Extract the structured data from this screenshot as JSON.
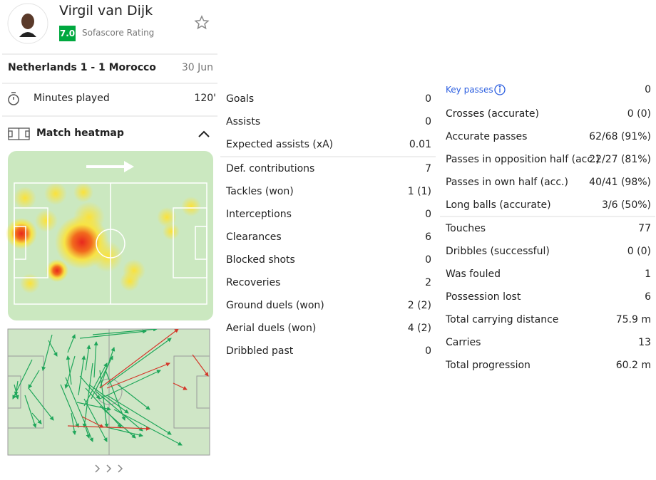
{
  "player": {
    "name": "Virgil van Dijk",
    "rating": "7.0",
    "rating_label": "Sofascore Rating"
  },
  "match": {
    "teams": "Netherlands 1 - 1 Morocco",
    "date": "30 Jun"
  },
  "minutes": {
    "label": "Minutes played",
    "value": "120'"
  },
  "heatmap": {
    "title": "Match heatmap"
  },
  "stats": [
    [
      [
        [
          "Goals",
          0
        ],
        [
          "Assists",
          0
        ],
        [
          "Expected assists (xA)",
          0.01
        ]
      ],
      [
        [
          "Def. contributions",
          7
        ],
        [
          "Tackles (won)",
          "1 (1)"
        ],
        [
          "Interceptions",
          0
        ],
        [
          "Clearances",
          6
        ],
        [
          "Blocked shots",
          0
        ],
        [
          "Recoveries",
          2
        ],
        [
          "Ground duels (won)",
          "2 (2)"
        ],
        [
          "Aerial duels (won)",
          "4 (2)"
        ],
        [
          "Dribbled past",
          0
        ]
      ]
    ],
    [
      [
        [
          "Key passes",
          0
        ],
        [
          "Crosses (accurate)",
          "0 (0)"
        ],
        [
          "Accurate passes",
          "62/68 (91%)"
        ],
        [
          "Passes in opposition half (acc.)",
          "22/27 (81%)"
        ],
        [
          "Passes in own half (acc.)",
          "40/41 (98%)"
        ],
        [
          "Long balls (accurate)",
          "3/6 (50%)"
        ]
      ],
      [
        [
          "Touches",
          77
        ],
        [
          "Dribbles (successful)",
          "0 (0)"
        ],
        [
          "Was fouled",
          1
        ],
        [
          "Possession lost",
          6
        ],
        [
          "Total carrying distance",
          "75.9 m"
        ],
        [
          "Carries",
          13
        ],
        [
          "Total progression",
          "60.2 m"
        ]
      ]
    ]
  ]
}
